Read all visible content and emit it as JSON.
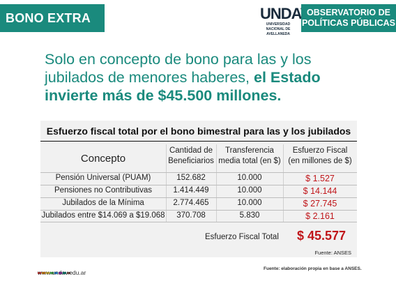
{
  "header": {
    "left_badge": "BONO EXTRA",
    "logo_mark": "UNDAV",
    "logo_line1": "UNIVERSIDAD",
    "logo_line2": "NACIONAL DE",
    "logo_line3": "AVELLANEDA",
    "right_badge_line1": "OBSERVATORIO DE",
    "right_badge_line2": "POLÍTICAS PÚBLICAS"
  },
  "headline": {
    "plain": "Solo en concepto de bono para las y los jubilados de menores haberes, ",
    "bold": "el Estado invierte más de $45.500 millones."
  },
  "table": {
    "title": "Esfuerzo fiscal total por el bono bimestral para las y los jubilados",
    "headers": {
      "concepto": "Concepto",
      "cantidad_1": "Cantidad de",
      "cantidad_2": "Beneficiarios",
      "transferencia_1": "Transferencia",
      "transferencia_2": "media total (en $)",
      "esfuerzo_1": "Esfuerzo Fiscal",
      "esfuerzo_2": "(en millones de $)"
    },
    "rows": [
      {
        "concepto": "Pensión Universal (PUAM)",
        "beneficiarios": "152.682",
        "transferencia": "10.000",
        "esfuerzo": "$ 1.527"
      },
      {
        "concepto": "Pensiones no Contributivas",
        "beneficiarios": "1.414.449",
        "transferencia": "10.000",
        "esfuerzo": "$ 14.144"
      },
      {
        "concepto": "Jubilados de la Mínima",
        "beneficiarios": "2.774.465",
        "transferencia": "10.000",
        "esfuerzo": "$ 27.745"
      },
      {
        "concepto": "Jubilados entre $14.069 a $19.068",
        "beneficiarios": "370.708",
        "transferencia": "5.830",
        "esfuerzo": "$ 2.161"
      }
    ],
    "total_label": "Esfuerzo Fiscal Total",
    "total_value": "$ 45.577",
    "source": "Fuente: ANSES"
  },
  "footer": {
    "url": "www.undav.edu.ar",
    "source": "Fuente: elaboración propia en base a ANSES.",
    "dot_colors": [
      "#e53935",
      "#fb8c00",
      "#fdd835",
      "#43a047",
      "#1e88e5",
      "#8e24aa",
      "#00897b",
      "#6d4c41"
    ]
  },
  "colors": {
    "accent": "#1a8a7d",
    "highlight": "#c0161a"
  }
}
